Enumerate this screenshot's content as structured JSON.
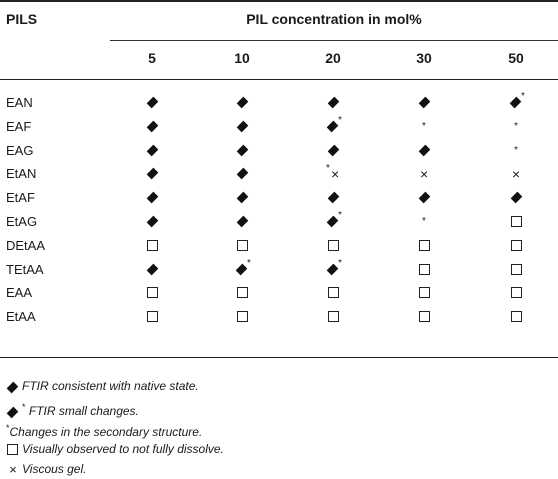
{
  "table": {
    "corner_header": "PILS",
    "group_header": "PIL concentration in mol%",
    "columns": [
      "5",
      "10",
      "20",
      "30",
      "50"
    ],
    "rows": [
      {
        "label": "EAN",
        "cells": [
          "diamond",
          "diamond",
          "diamond",
          "diamond",
          "diamond-star"
        ]
      },
      {
        "label": "EAF",
        "cells": [
          "diamond",
          "diamond",
          "diamond-star",
          "star",
          "star"
        ]
      },
      {
        "label": "EAG",
        "cells": [
          "diamond",
          "diamond",
          "diamond",
          "diamond",
          "star"
        ]
      },
      {
        "label": "EtAN",
        "cells": [
          "diamond",
          "diamond",
          "star-cross",
          "cross",
          "cross"
        ]
      },
      {
        "label": "EtAF",
        "cells": [
          "diamond",
          "diamond",
          "diamond",
          "diamond",
          "diamond"
        ]
      },
      {
        "label": "EtAG",
        "cells": [
          "diamond",
          "diamond",
          "diamond-star",
          "star",
          "square"
        ]
      },
      {
        "label": "DEtAA",
        "cells": [
          "square",
          "square",
          "square",
          "square",
          "square"
        ]
      },
      {
        "label": "TEtAA",
        "cells": [
          "diamond",
          "diamond-star",
          "diamond-star",
          "square",
          "square"
        ]
      },
      {
        "label": "EAA",
        "cells": [
          "square",
          "square",
          "square",
          "square",
          "square"
        ]
      },
      {
        "label": "EtAA",
        "cells": [
          "square",
          "square",
          "square",
          "square",
          "square"
        ]
      }
    ]
  },
  "symbols": {
    "star": "*",
    "cross": "×"
  },
  "footnotes": [
    {
      "marker": "diamond",
      "text": "FTIR consistent with native state."
    },
    {
      "marker": "diamond-star",
      "text": "FTIR small changes."
    },
    {
      "marker": "star",
      "text": "Changes in the secondary structure."
    },
    {
      "marker": "square",
      "text": "Visually observed to not fully dissolve."
    },
    {
      "marker": "cross",
      "text": "Viscous gel."
    }
  ]
}
